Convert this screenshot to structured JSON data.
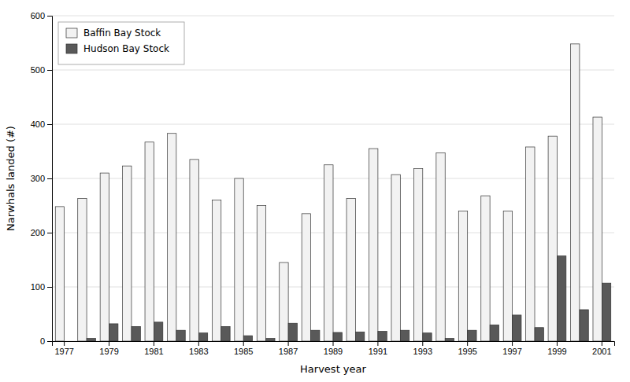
{
  "chart_data": {
    "type": "bar",
    "xlabel": "Harvest year",
    "ylabel": "Narwhals landed (#)",
    "categories": [
      "1977",
      null,
      "1979",
      null,
      "1981",
      null,
      "1983",
      null,
      "1985",
      null,
      "1987",
      null,
      "1989",
      null,
      "1991",
      null,
      "1993",
      null,
      "1995",
      null,
      "1997",
      null,
      "1999",
      null,
      "2001"
    ],
    "series": [
      {
        "name": "Baffin Bay Stock",
        "color": "#f2f2f2",
        "values": [
          248,
          263,
          310,
          323,
          367,
          383,
          335,
          260,
          300,
          250,
          145,
          235,
          325,
          263,
          355,
          307,
          318,
          347,
          240,
          268,
          240,
          358,
          378,
          548,
          413
        ]
      },
      {
        "name": "Hudson Bay Stock",
        "color": "#595959",
        "values": [
          0,
          5,
          32,
          27,
          35,
          20,
          15,
          27,
          10,
          5,
          33,
          20,
          16,
          17,
          18,
          20,
          15,
          5,
          20,
          30,
          48,
          25,
          157,
          58,
          107
        ]
      }
    ],
    "ylim": [
      0,
      600
    ],
    "yticks": [
      0,
      100,
      200,
      300,
      400,
      500,
      600
    ],
    "grid": true,
    "legend": "upper left"
  }
}
